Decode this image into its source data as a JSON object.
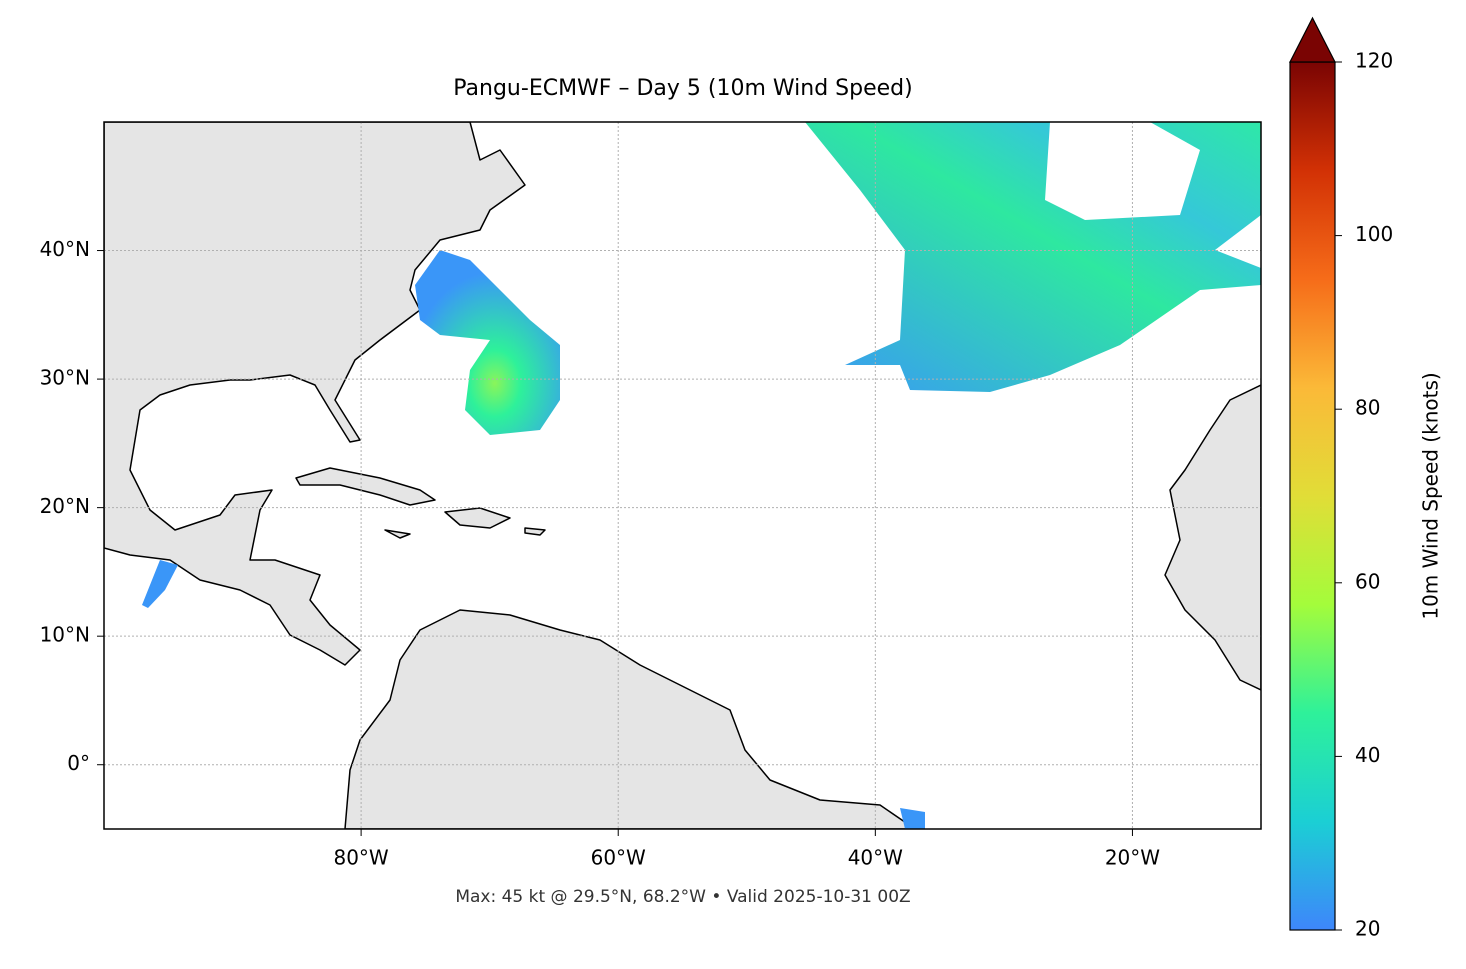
{
  "title": "Pangu-ECMWF – Day 5 (10m Wind Speed)",
  "footer": "Max: 45 kt @ 29.5°N, 68.2°W • Valid 2025-10-31 00Z",
  "map": {
    "xlim": [
      -100,
      -10
    ],
    "ylim": [
      -5,
      50
    ],
    "xticks": [
      {
        "value": -80,
        "label": "80°W"
      },
      {
        "value": -60,
        "label": "60°W"
      },
      {
        "value": -40,
        "label": "40°W"
      },
      {
        "value": -20,
        "label": "20°W"
      }
    ],
    "yticks": [
      {
        "value": 0,
        "label": "0°"
      },
      {
        "value": 10,
        "label": "10°N"
      },
      {
        "value": 20,
        "label": "20°N"
      },
      {
        "value": 30,
        "label": "30°N"
      },
      {
        "value": 40,
        "label": "40°N"
      }
    ],
    "grid": true
  },
  "colorbar": {
    "label": "10m Wind Speed (knots)",
    "lim": [
      20,
      120
    ],
    "ticks": [
      20,
      40,
      60,
      80,
      100,
      120
    ],
    "extend": "max",
    "colormap": [
      "#3e86fb",
      "#1bcfd4",
      "#2ef19a",
      "#a4fc3b",
      "#e1dd37",
      "#fbb938",
      "#f66c19",
      "#d23105",
      "#7a0403"
    ]
  }
}
